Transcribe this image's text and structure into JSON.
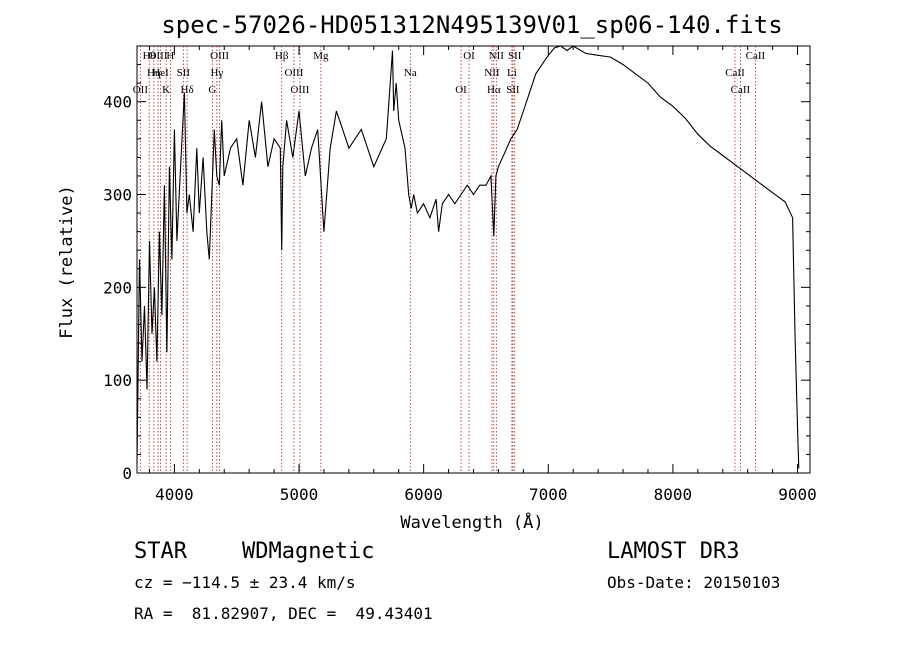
{
  "chart_data": {
    "type": "line",
    "title": "spec-57026-HD051312N495139V01_sp06-140.fits",
    "xlabel": "Wavelength (Å)",
    "ylabel": "Flux (relative)",
    "xlim": [
      3700,
      9100
    ],
    "ylim": [
      0,
      460
    ],
    "xticks": [
      4000,
      5000,
      6000,
      7000,
      8000,
      9000
    ],
    "yticks": [
      0,
      100,
      200,
      300,
      400
    ],
    "grid": false,
    "series": [
      {
        "x": [
          3700,
          3720,
          3740,
          3760,
          3780,
          3800,
          3820,
          3840,
          3860,
          3880,
          3900,
          3920,
          3940,
          3960,
          3980,
          4000,
          4020,
          4050,
          4080,
          4100,
          4120,
          4150,
          4180,
          4200,
          4230,
          4260,
          4280,
          4300,
          4320,
          4340,
          4360,
          4380,
          4400,
          4450,
          4500,
          4550,
          4600,
          4650,
          4700,
          4750,
          4800,
          4850,
          4861,
          4870,
          4900,
          4950,
          5000,
          5050,
          5100,
          5150,
          5200,
          5250,
          5300,
          5400,
          5500,
          5600,
          5700,
          5750,
          5760,
          5780,
          5800,
          5850,
          5880,
          5900,
          5920,
          5950,
          6000,
          6050,
          6100,
          6120,
          6150,
          6200,
          6250,
          6300,
          6350,
          6400,
          6450,
          6500,
          6540,
          6563,
          6580,
          6600,
          6650,
          6700,
          6750,
          6800,
          6850,
          6900,
          6950,
          7000,
          7050,
          7100,
          7150,
          7200,
          7300,
          7400,
          7500,
          7600,
          7700,
          7800,
          7900,
          8000,
          8100,
          8200,
          8300,
          8400,
          8500,
          8600,
          8700,
          8800,
          8900,
          8960,
          8980,
          9000,
          9010
        ],
        "y": [
          10,
          230,
          120,
          180,
          90,
          250,
          150,
          200,
          120,
          260,
          170,
          310,
          130,
          330,
          230,
          370,
          250,
          330,
          410,
          280,
          300,
          260,
          350,
          280,
          340,
          260,
          230,
          300,
          370,
          320,
          310,
          380,
          320,
          350,
          360,
          310,
          380,
          340,
          400,
          330,
          360,
          350,
          240,
          330,
          380,
          340,
          390,
          320,
          350,
          370,
          260,
          350,
          390,
          350,
          370,
          330,
          360,
          455,
          390,
          420,
          380,
          350,
          300,
          285,
          300,
          280,
          290,
          275,
          295,
          260,
          290,
          300,
          290,
          300,
          310,
          300,
          310,
          310,
          320,
          255,
          320,
          330,
          345,
          360,
          370,
          390,
          410,
          430,
          440,
          450,
          458,
          460,
          455,
          460,
          452,
          450,
          448,
          440,
          430,
          420,
          405,
          395,
          382,
          365,
          352,
          342,
          332,
          322,
          312,
          302,
          292,
          275,
          150,
          50,
          5
        ]
      }
    ],
    "annotations": [
      {
        "label": "Hθ",
        "x": 3798
      },
      {
        "label": "Hη",
        "x": 3835
      },
      {
        "label": "OII",
        "x": 3727
      },
      {
        "label": "OIII",
        "x": 3869
      },
      {
        "label": "HeI",
        "x": 3889
      },
      {
        "label": "K",
        "x": 3934
      },
      {
        "label": "H",
        "x": 3968
      },
      {
        "label": "SII",
        "x": 4072
      },
      {
        "label": "Hδ",
        "x": 4102
      },
      {
        "label": "OIII",
        "x": 4363
      },
      {
        "label": "Hγ",
        "x": 4341
      },
      {
        "label": "G",
        "x": 4305
      },
      {
        "label": "Hβ",
        "x": 4861
      },
      {
        "label": "OIII",
        "x": 4959
      },
      {
        "label": "OIII",
        "x": 5007
      },
      {
        "label": "Mg",
        "x": 5175
      },
      {
        "label": "Na",
        "x": 5893
      },
      {
        "label": "OI",
        "x": 6300
      },
      {
        "label": "OI",
        "x": 6364
      },
      {
        "label": "NII",
        "x": 6548
      },
      {
        "label": "Hα",
        "x": 6563
      },
      {
        "label": "NII",
        "x": 6583
      },
      {
        "label": "Li",
        "x": 6708
      },
      {
        "label": "SII",
        "x": 6716
      },
      {
        "label": "SII",
        "x": 6731
      },
      {
        "label": "CaII",
        "x": 8498
      },
      {
        "label": "CaII",
        "x": 8542
      },
      {
        "label": "CaII",
        "x": 8662
      }
    ]
  },
  "footer": {
    "class_label": "STAR",
    "subclass": "WDMagnetic",
    "survey": "LAMOST DR3",
    "redshift": "cz = −114.5 ± 23.4 km/s",
    "obs_date": "Obs-Date: 20150103",
    "coords": "RA =  81.82907, DEC =  49.43401"
  }
}
